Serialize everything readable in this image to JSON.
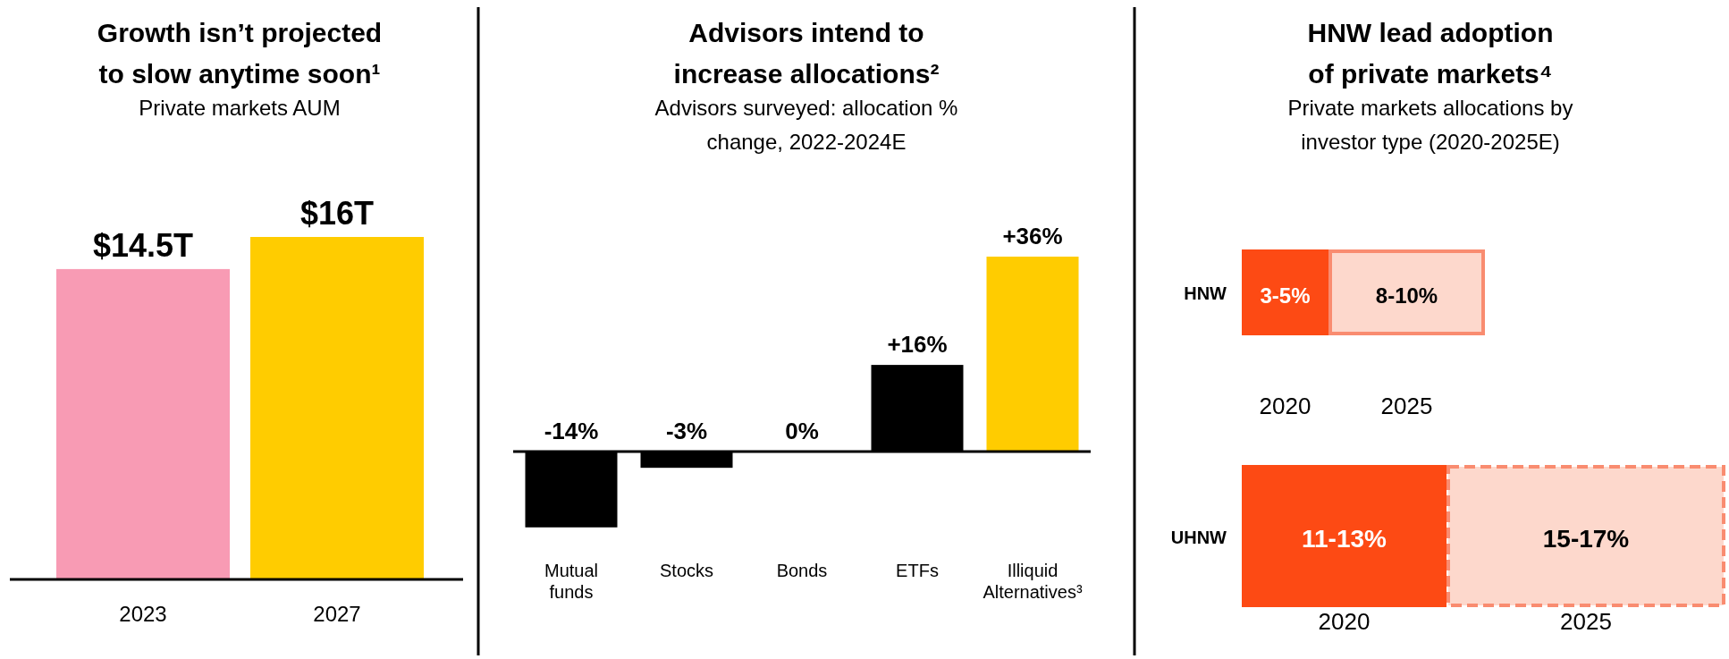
{
  "chart_data": [
    {
      "type": "bar",
      "title": "Growth isn’t projected to slow anytime soon¹",
      "subtitle": "Private markets AUM",
      "categories": [
        "2023",
        "2027"
      ],
      "values": [
        14.5,
        16
      ],
      "colors": [
        "#f89bb4",
        "#ffcc00"
      ],
      "value_labels": [
        "$14.5T",
        "$16T"
      ]
    },
    {
      "type": "bar",
      "title": "Advisors intend to increase allocations²",
      "subtitle": "Advisors surveyed: allocation % change, 2022-2024E",
      "categories": [
        "Mutual funds",
        "Stocks",
        "Bonds",
        "ETFs",
        "Illiquid Alternatives³"
      ],
      "values": [
        -14,
        -3,
        0,
        16,
        36
      ],
      "colors": [
        "#000000",
        "#000000",
        "#000000",
        "#000000",
        "#ffcc00"
      ],
      "value_labels": [
        "-14%",
        "-3%",
        "0%",
        "+16%",
        "+36%"
      ]
    },
    {
      "type": "other",
      "title": "HNW lead adoption of private markets⁴",
      "subtitle": "Private markets allocations by investor type (2020-2025E)",
      "categories": [
        "HNW",
        "UHNW"
      ],
      "annotations": [
        "3-5%",
        "8-10%",
        "2020",
        "2025",
        "11-13%",
        "15-17%",
        "2020",
        "2025"
      ]
    }
  ]
}
